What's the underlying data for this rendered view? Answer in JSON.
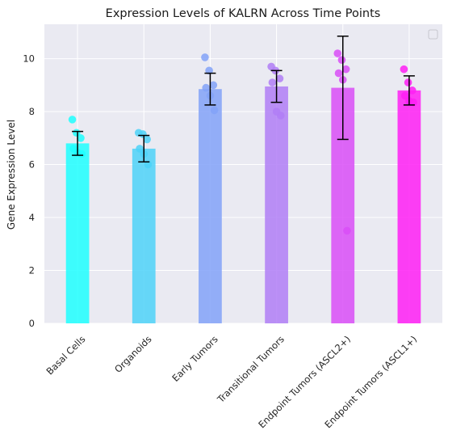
{
  "chart_data": {
    "type": "bar",
    "title": "Expression Levels of KALRN Across Time Points",
    "xlabel": "",
    "ylabel": "Gene Expression Level",
    "ylim": [
      0,
      11.3
    ],
    "yticks": [
      0,
      2,
      4,
      6,
      8,
      10
    ],
    "grid": true,
    "legend": "top-right (empty)",
    "categories": [
      "Basal Cells",
      "Organoids",
      "Early Tumors",
      "Transitional Tumors",
      "Endpoint Tumors (ASCL2+)",
      "Endpoint Tumors (ASCL1+)"
    ],
    "values": [
      6.8,
      6.6,
      8.85,
      8.95,
      8.9,
      8.8
    ],
    "errors": [
      0.45,
      0.5,
      0.6,
      0.6,
      1.95,
      0.55
    ],
    "colors": [
      "#1effff",
      "#4dd2f8",
      "#82a2f8",
      "#b07ef6",
      "#d94ef7",
      "#ff1ff5"
    ],
    "points": [
      [
        7.7,
        7.2,
        7.0,
        6.6,
        6.45,
        6.4
      ],
      [
        7.2,
        7.15,
        6.95,
        6.6,
        6.4,
        6.0
      ],
      [
        10.05,
        9.55,
        9.0,
        8.9,
        8.6,
        8.05
      ],
      [
        9.7,
        9.55,
        9.25,
        9.1,
        8.0,
        7.85
      ],
      [
        10.2,
        9.95,
        9.6,
        9.45,
        9.2,
        3.5
      ],
      [
        9.6,
        9.1,
        8.8,
        8.6,
        8.4,
        8.35
      ]
    ]
  }
}
